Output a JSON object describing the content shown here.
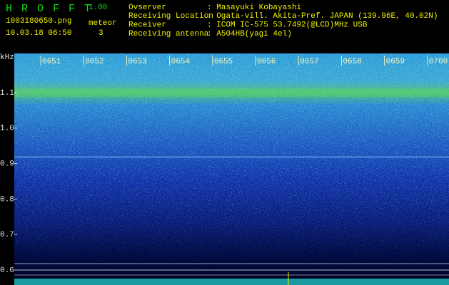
{
  "header": {
    "title": "H R O F F T",
    "version": "1.00",
    "file": "1003180650.png",
    "datetime": "10.03.18 06:50",
    "meteor_label": "meteor",
    "meteor_count": "3"
  },
  "info": [
    {
      "label": "Ovserver",
      "value": ": Masayuki Kobayashi"
    },
    {
      "label": "Receiving Location",
      "value": ": Ogata-vill. Akita-Pref. JAPAN (139.96E, 40.02N)"
    },
    {
      "label": "Receiver",
      "value": ": ICOM IC-575 53.7492(@LCD)MHz USB"
    },
    {
      "label": "Receiving antenna",
      "value": ": A504HB(yagi 4el)"
    }
  ],
  "spectrogram": {
    "unit": "kHz",
    "freq_labels": [
      "1.1",
      "1.0",
      "0.9",
      "0.8",
      "0.7",
      "0.6"
    ],
    "time_labels": [
      "0651",
      "0652",
      "0653",
      "0654",
      "0655",
      "0656",
      "0657",
      "0658",
      "0659",
      "0700"
    ]
  }
}
